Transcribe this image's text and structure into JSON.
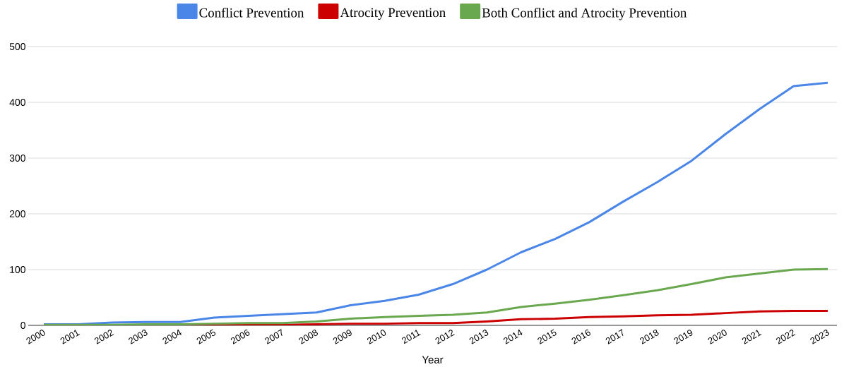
{
  "chart_data": {
    "type": "line",
    "xlabel": "Year",
    "categories": [
      "2000",
      "2001",
      "2002",
      "2003",
      "2004",
      "2005",
      "2006",
      "2007",
      "2008",
      "2009",
      "2010",
      "2011",
      "2012",
      "2013",
      "2014",
      "2015",
      "2016",
      "2017",
      "2018",
      "2019",
      "2020",
      "2021",
      "2022",
      "2023"
    ],
    "series": [
      {
        "name": "Conflict Prevention",
        "color": "#4a86e8",
        "values": [
          2,
          2,
          5,
          6,
          6,
          14,
          17,
          20,
          23,
          36,
          44,
          55,
          74,
          100,
          131,
          155,
          185,
          222,
          257,
          295,
          343,
          388,
          429,
          435
        ]
      },
      {
        "name": "Atrocity Prevention",
        "color": "#cc0000",
        "values": [
          null,
          null,
          null,
          null,
          0,
          0,
          1,
          1,
          2,
          3,
          3,
          4,
          4,
          7,
          11,
          12,
          15,
          16,
          18,
          19,
          22,
          25,
          26,
          26
        ]
      },
      {
        "name": "Both Conflict and Atrocity Prevention",
        "color": "#6aa84f",
        "values": [
          1,
          1,
          1,
          2,
          2,
          3,
          4,
          4,
          7,
          12,
          15,
          17,
          19,
          23,
          33,
          39,
          46,
          54,
          63,
          74,
          86,
          93,
          100,
          101
        ]
      }
    ],
    "ylim": [
      0,
      500
    ],
    "yticks": [
      0,
      100,
      200,
      300,
      400,
      500
    ],
    "grid": "y",
    "legend": "top"
  }
}
